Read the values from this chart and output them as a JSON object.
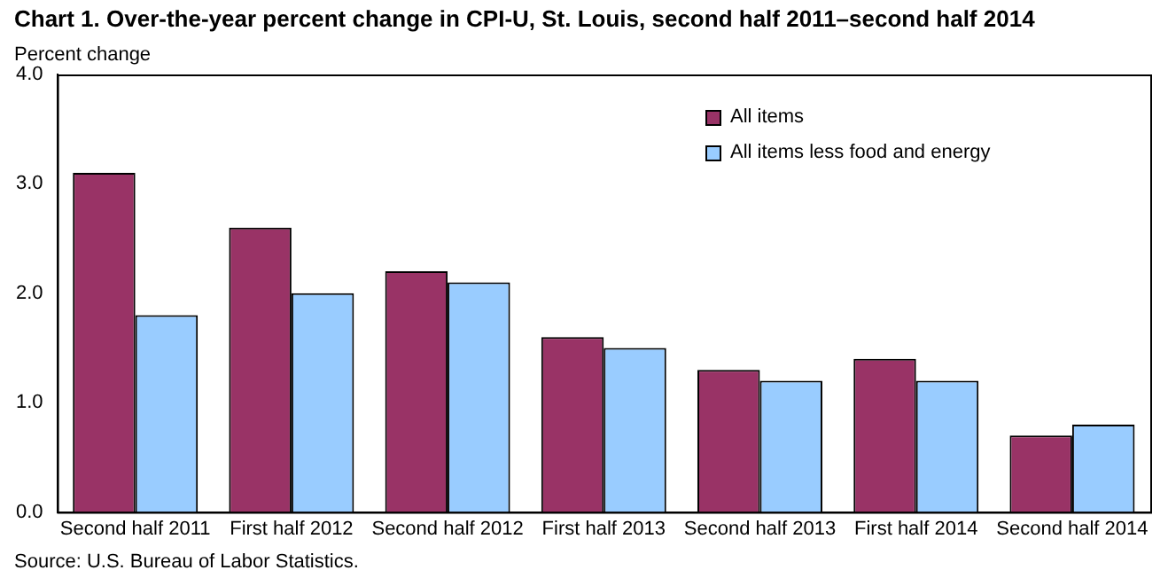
{
  "chart_data": {
    "type": "bar",
    "title": "Chart 1. Over-the-year percent change in CPI-U, St. Louis, second half 2011–second  half 2014",
    "ylabel": "Percent change",
    "annotations": [
      "Source: U.S. Bureau of Labor Statistics."
    ],
    "categories": [
      "Second half 2011",
      "First half 2012",
      "Second half 2012",
      "First half 2013",
      "Second half 2013",
      "First half 2014",
      "Second half 2014"
    ],
    "series": [
      {
        "name": "All items",
        "color": "#993366",
        "values": [
          3.1,
          2.6,
          2.2,
          1.6,
          1.3,
          1.4,
          0.7
        ]
      },
      {
        "name": "All items less food and energy",
        "color": "#99ccff",
        "values": [
          1.8,
          2.0,
          2.1,
          1.5,
          1.2,
          1.2,
          0.8
        ]
      }
    ],
    "ylim": [
      0,
      4
    ],
    "yticks": [
      {
        "value": 0,
        "label": "0.0"
      },
      {
        "value": 1,
        "label": "1.0"
      },
      {
        "value": 2,
        "label": "2.0"
      },
      {
        "value": 3,
        "label": "3.0"
      },
      {
        "value": 4,
        "label": "4.0"
      }
    ],
    "grid": false,
    "legend": "top right"
  }
}
